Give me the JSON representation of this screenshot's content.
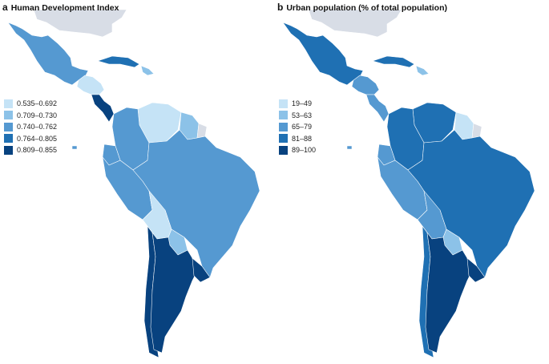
{
  "figure": {
    "panel_a": {
      "letter": "a",
      "title": "Human Development Index",
      "legend": [
        {
          "label": "0.535–0.692",
          "color": "#c5e3f6"
        },
        {
          "label": "0.709–0.730",
          "color": "#8cc2e8"
        },
        {
          "label": "0.740–0.762",
          "color": "#5599d1"
        },
        {
          "label": "0.764–0.805",
          "color": "#1f70b3"
        },
        {
          "label": "0.809–0.855",
          "color": "#08427f"
        }
      ],
      "regions": {
        "north-america-context": "#d8dde6",
        "mexico": "#5599d1",
        "central-america-north": "#c5e3f6",
        "costa-rica-panama": "#08427f",
        "cuba": "#1f70b3",
        "hispaniola": "#8cc2e8",
        "venezuela": "#c5e3f6",
        "colombia": "#5599d1",
        "guianas": "#8cc2e8",
        "french-guiana": "#d8dde6",
        "ecuador": "#5599d1",
        "peru": "#5599d1",
        "brazil": "#5599d1",
        "bolivia": "#c5e3f6",
        "paraguay": "#8cc2e8",
        "chile": "#08427f",
        "argentina": "#08427f",
        "uruguay": "#08427f"
      }
    },
    "panel_b": {
      "letter": "b",
      "title": "Urban population (% of total population)",
      "legend": [
        {
          "label": "19–49",
          "color": "#c5e3f6"
        },
        {
          "label": "53–63",
          "color": "#8cc2e8"
        },
        {
          "label": "65–79",
          "color": "#5599d1"
        },
        {
          "label": "81–88",
          "color": "#1f70b3"
        },
        {
          "label": "89–100",
          "color": "#08427f"
        }
      ],
      "regions": {
        "north-america-context": "#d8dde6",
        "mexico": "#1f70b3",
        "central-america-north": "#5599d1",
        "costa-rica-panama": "#5599d1",
        "cuba": "#1f70b3",
        "hispaniola": "#8cc2e8",
        "venezuela": "#1f70b3",
        "colombia": "#1f70b3",
        "guianas": "#c5e3f6",
        "french-guiana": "#d8dde6",
        "ecuador": "#5599d1",
        "peru": "#5599d1",
        "brazil": "#1f70b3",
        "bolivia": "#5599d1",
        "paraguay": "#8cc2e8",
        "chile": "#1f70b3",
        "argentina": "#08427f",
        "uruguay": "#08427f"
      }
    }
  }
}
